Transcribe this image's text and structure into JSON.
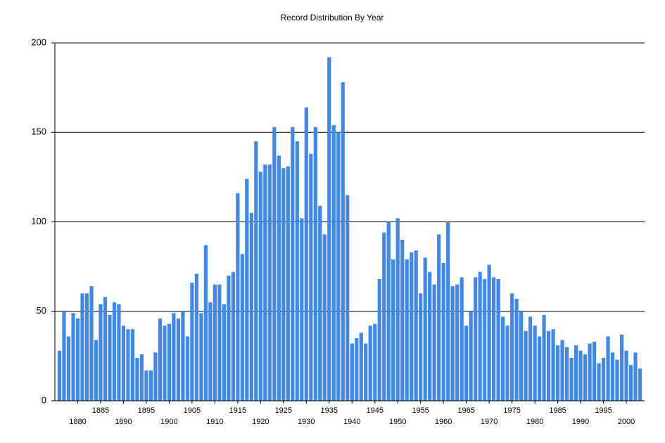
{
  "chart_data": {
    "type": "bar",
    "title": "Record Distribution By Year",
    "x": [
      1876,
      1877,
      1878,
      1879,
      1880,
      1881,
      1882,
      1883,
      1884,
      1885,
      1886,
      1887,
      1888,
      1889,
      1890,
      1891,
      1892,
      1893,
      1894,
      1895,
      1896,
      1897,
      1898,
      1899,
      1900,
      1901,
      1902,
      1903,
      1904,
      1905,
      1906,
      1907,
      1908,
      1909,
      1910,
      1911,
      1912,
      1913,
      1914,
      1915,
      1916,
      1917,
      1918,
      1919,
      1920,
      1921,
      1922,
      1923,
      1924,
      1925,
      1926,
      1927,
      1928,
      1929,
      1930,
      1931,
      1932,
      1933,
      1934,
      1935,
      1936,
      1937,
      1938,
      1939,
      1940,
      1941,
      1942,
      1943,
      1944,
      1945,
      1946,
      1947,
      1948,
      1949,
      1950,
      1951,
      1952,
      1953,
      1954,
      1955,
      1956,
      1957,
      1958,
      1959,
      1960,
      1961,
      1962,
      1963,
      1964,
      1965,
      1966,
      1967,
      1968,
      1969,
      1970,
      1971,
      1972,
      1973,
      1974,
      1975,
      1976,
      1977,
      1978,
      1979,
      1980,
      1981,
      1982,
      1983,
      1984,
      1985,
      1986,
      1987,
      1988,
      1989,
      1990,
      1991,
      1992,
      1993,
      1994,
      1995,
      1996,
      1997,
      1998,
      1999,
      2000,
      2001,
      2002,
      2003
    ],
    "values": [
      28,
      50,
      36,
      49,
      46,
      60,
      60,
      64,
      34,
      54,
      58,
      48,
      55,
      54,
      42,
      40,
      40,
      24,
      26,
      17,
      17,
      27,
      46,
      42,
      43,
      49,
      46,
      50,
      36,
      66,
      71,
      49,
      87,
      55,
      65,
      65,
      54,
      70,
      72,
      116,
      82,
      124,
      105,
      145,
      128,
      132,
      132,
      153,
      137,
      130,
      131,
      153,
      145,
      102,
      164,
      138,
      153,
      109,
      93,
      192,
      154,
      150,
      178,
      115,
      32,
      35,
      38,
      32,
      42,
      43,
      68,
      94,
      100,
      79,
      102,
      90,
      79,
      83,
      84,
      60,
      80,
      72,
      65,
      93,
      77,
      100,
      64,
      65,
      69,
      42,
      50,
      69,
      72,
      68,
      76,
      69,
      68,
      47,
      42,
      60,
      57,
      50,
      39,
      47,
      42,
      36,
      48,
      39,
      40,
      31,
      34,
      30,
      24,
      31,
      28,
      26,
      32,
      33,
      21,
      24,
      36,
      27,
      23,
      37,
      28,
      20,
      27,
      18
    ],
    "color": "#3f87e8",
    "xlim": [
      1875,
      2004
    ],
    "xticks": [
      1880,
      1885,
      1890,
      1895,
      1900,
      1905,
      1910,
      1915,
      1920,
      1925,
      1930,
      1935,
      1940,
      1945,
      1950,
      1955,
      1960,
      1965,
      1970,
      1975,
      1980,
      1985,
      1990,
      1995,
      2000
    ],
    "ylim": [
      0,
      200
    ],
    "yticks": [
      0,
      50,
      100,
      150,
      200
    ],
    "grid": true
  }
}
